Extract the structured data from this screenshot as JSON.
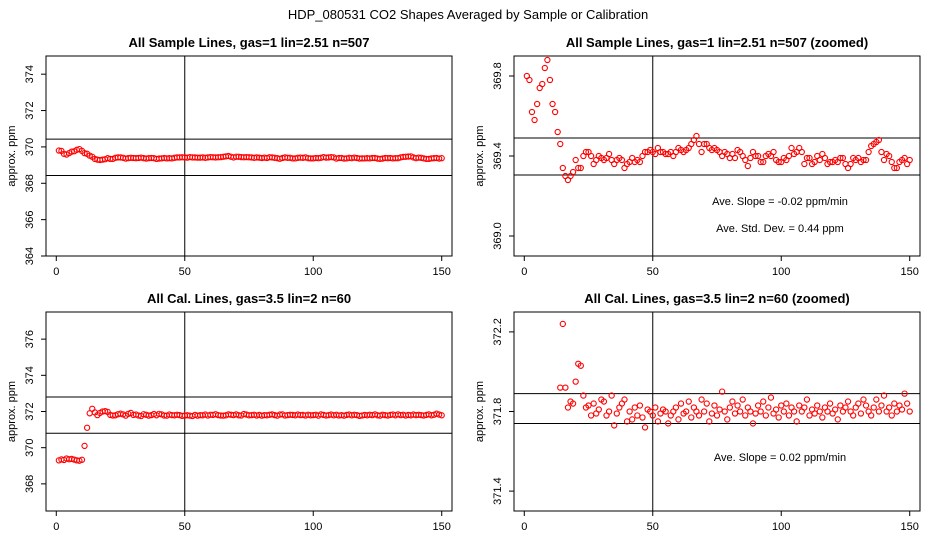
{
  "suptitle": "HDP_080531  CO2 Shapes Averaged by Sample or Calibration",
  "colors": {
    "points": "#ff0000",
    "axes": "#000000",
    "background": "#ffffff"
  },
  "chart_data": [
    {
      "id": "sample-full",
      "type": "scatter",
      "title": "All Sample Lines, gas=1 lin=2.51 n=507",
      "xlabel": "",
      "ylabel": "approx. ppm",
      "xlim": [
        -4,
        154
      ],
      "ylim": [
        364,
        375
      ],
      "xticks": [
        0,
        50,
        100,
        150
      ],
      "yticks": [
        364,
        366,
        368,
        370,
        372,
        374
      ],
      "hlines": [
        370.43,
        368.43
      ],
      "vline": 50,
      "annotations": [],
      "series": [
        {
          "name": "sample",
          "x_start": 1,
          "x_step": 1,
          "y": [
            369.8,
            369.78,
            369.62,
            369.58,
            369.66,
            369.74,
            369.76,
            369.84,
            369.88,
            369.78,
            369.66,
            369.62,
            369.52,
            369.46,
            369.34,
            369.3,
            369.28,
            369.3,
            369.32,
            369.38,
            369.34,
            369.34,
            369.4,
            369.42,
            369.42,
            369.4,
            369.36,
            369.38,
            369.4,
            369.39,
            369.38,
            369.39,
            369.41,
            369.38,
            369.36,
            369.38,
            369.39,
            369.38,
            369.34,
            369.36,
            369.37,
            369.39,
            369.37,
            369.38,
            369.37,
            369.4,
            369.42,
            369.42,
            369.43,
            369.42,
            369.41,
            369.44,
            369.42,
            369.42,
            369.41,
            369.41,
            369.42,
            369.4,
            369.42,
            369.44,
            369.43,
            369.42,
            369.43,
            369.44,
            369.46,
            369.48,
            369.5,
            369.46,
            369.42,
            369.46,
            369.46,
            369.44,
            369.43,
            369.44,
            369.43,
            369.42,
            369.4,
            369.42,
            369.41,
            369.39,
            369.41,
            369.39,
            369.43,
            369.42,
            369.4,
            369.38,
            369.35,
            369.39,
            369.42,
            369.4,
            369.4,
            369.37,
            369.37,
            369.4,
            369.41,
            369.4,
            369.42,
            369.38,
            369.37,
            369.37,
            369.39,
            369.38,
            369.4,
            369.44,
            369.41,
            369.42,
            369.44,
            369.42,
            369.36,
            369.39,
            369.39,
            369.36,
            369.37,
            369.4,
            369.38,
            369.41,
            369.39,
            369.36,
            369.37,
            369.37,
            369.38,
            369.37,
            369.39,
            369.39,
            369.36,
            369.34,
            369.36,
            369.39,
            369.38,
            369.39,
            369.37,
            369.38,
            369.38,
            369.42,
            369.45,
            369.46,
            369.47,
            369.48,
            369.42,
            369.38,
            369.41,
            369.4,
            369.37,
            369.34,
            369.34,
            369.37,
            369.38,
            369.39,
            369.36,
            369.38
          ]
        }
      ]
    },
    {
      "id": "sample-zoom",
      "type": "scatter",
      "title": "All Sample Lines, gas=1 lin=2.51 n=507 (zoomed)",
      "xlabel": "",
      "ylabel": "approx. ppm",
      "xlim": [
        -4,
        154
      ],
      "ylim": [
        368.9,
        369.9
      ],
      "xticks": [
        0,
        50,
        100,
        150
      ],
      "yticks": [
        369.0,
        369.4,
        369.8
      ],
      "ytick_labels": [
        "369.0",
        "369.4",
        "369.8"
      ],
      "hlines": [
        369.49,
        369.305
      ],
      "vline": 50,
      "annotations": [
        "Ave. Slope = -0.02  ppm/min",
        "Ave. Std. Dev. = 0.44  ppm"
      ],
      "series": [
        {
          "name": "sample",
          "x_start": 1,
          "x_step": 1,
          "y": [
            369.8,
            369.78,
            369.62,
            369.58,
            369.66,
            369.74,
            369.76,
            369.84,
            369.88,
            369.78,
            369.66,
            369.62,
            369.52,
            369.46,
            369.34,
            369.3,
            369.28,
            369.3,
            369.32,
            369.38,
            369.34,
            369.34,
            369.4,
            369.42,
            369.42,
            369.4,
            369.36,
            369.38,
            369.4,
            369.39,
            369.38,
            369.39,
            369.41,
            369.38,
            369.36,
            369.38,
            369.39,
            369.38,
            369.34,
            369.36,
            369.37,
            369.39,
            369.37,
            369.38,
            369.37,
            369.4,
            369.42,
            369.42,
            369.43,
            369.42,
            369.41,
            369.44,
            369.42,
            369.42,
            369.41,
            369.41,
            369.42,
            369.4,
            369.42,
            369.44,
            369.43,
            369.42,
            369.43,
            369.44,
            369.46,
            369.48,
            369.5,
            369.46,
            369.42,
            369.46,
            369.46,
            369.44,
            369.43,
            369.44,
            369.43,
            369.42,
            369.4,
            369.42,
            369.41,
            369.39,
            369.41,
            369.39,
            369.43,
            369.42,
            369.4,
            369.38,
            369.35,
            369.39,
            369.42,
            369.4,
            369.4,
            369.37,
            369.37,
            369.4,
            369.41,
            369.4,
            369.42,
            369.38,
            369.37,
            369.37,
            369.39,
            369.38,
            369.4,
            369.44,
            369.41,
            369.42,
            369.44,
            369.42,
            369.36,
            369.39,
            369.39,
            369.36,
            369.37,
            369.4,
            369.38,
            369.41,
            369.39,
            369.36,
            369.37,
            369.37,
            369.38,
            369.37,
            369.39,
            369.39,
            369.36,
            369.34,
            369.36,
            369.39,
            369.38,
            369.39,
            369.37,
            369.38,
            369.38,
            369.42,
            369.45,
            369.46,
            369.47,
            369.48,
            369.42,
            369.38,
            369.41,
            369.4,
            369.37,
            369.34,
            369.34,
            369.37,
            369.38,
            369.39,
            369.36,
            369.38
          ]
        }
      ]
    },
    {
      "id": "cal-full",
      "type": "scatter",
      "title": "All Cal. Lines, gas=3.5 lin=2 n=60",
      "xlabel": "",
      "ylabel": "approx. ppm",
      "xlim": [
        -4,
        154
      ],
      "ylim": [
        366.5,
        377.5
      ],
      "xticks": [
        0,
        50,
        100,
        150
      ],
      "yticks": [
        368,
        370,
        372,
        374,
        376
      ],
      "hlines": [
        372.8,
        370.8
      ],
      "vline": 50,
      "annotations": [],
      "series": [
        {
          "name": "cal",
          "x_start": 1,
          "x_step": 1,
          "y": [
            369.3,
            369.35,
            369.32,
            369.4,
            369.36,
            369.38,
            369.34,
            369.3,
            369.28,
            369.33,
            370.1,
            371.1,
            371.9,
            372.15,
            371.95,
            371.8,
            371.92,
            372.0,
            372.02,
            371.98,
            371.81,
            371.78,
            371.79,
            371.85,
            371.88,
            371.84,
            371.77,
            371.87,
            371.92,
            371.81,
            371.83,
            371.78,
            371.75,
            371.85,
            371.82,
            371.77,
            371.8,
            371.86,
            371.79,
            371.87,
            371.84,
            371.78,
            371.77,
            371.83,
            371.8,
            371.79,
            371.82,
            371.8,
            371.76,
            371.78,
            371.79,
            371.77,
            371.75,
            371.81,
            371.77,
            371.8,
            371.79,
            371.83,
            371.78,
            371.82,
            371.81,
            371.85,
            371.8,
            371.78,
            371.77,
            371.79,
            371.84,
            371.82,
            371.8,
            371.84,
            371.79,
            371.78,
            371.86,
            371.83,
            371.79,
            371.8,
            371.82,
            371.78,
            371.81,
            371.77,
            371.8,
            371.79,
            371.82,
            371.84,
            371.8,
            371.77,
            371.83,
            371.84,
            371.78,
            371.8,
            371.82,
            371.81,
            371.79,
            371.83,
            371.8,
            371.81,
            371.78,
            371.82,
            371.79,
            371.8,
            371.82,
            371.77,
            371.84,
            371.81,
            371.78,
            371.8,
            371.83,
            371.79,
            371.82,
            371.78,
            371.8,
            371.77,
            371.81,
            371.83,
            371.79,
            371.82,
            371.8,
            371.76,
            371.78,
            371.81,
            371.79,
            371.82,
            371.8,
            371.84,
            371.79,
            371.77,
            371.82,
            371.8,
            371.78,
            371.81,
            371.83,
            371.79,
            371.84,
            371.8,
            371.82,
            371.78,
            371.81,
            371.79,
            371.83,
            371.8,
            371.82,
            371.8,
            371.78,
            371.81,
            371.84,
            371.79,
            371.82,
            371.88,
            371.83,
            371.79
          ]
        }
      ]
    },
    {
      "id": "cal-zoom",
      "type": "scatter",
      "title": "All Cal. Lines, gas=3.5 lin=2 n=60 (zoomed)",
      "xlabel": "",
      "ylabel": "approx. ppm",
      "xlim": [
        -4,
        154
      ],
      "ylim": [
        371.3,
        372.3
      ],
      "xticks": [
        0,
        50,
        100,
        150
      ],
      "yticks": [
        371.4,
        371.8,
        372.2
      ],
      "ytick_labels": [
        "371.4",
        "371.8",
        "372.2"
      ],
      "hlines": [
        371.89,
        371.74
      ],
      "vline": 50,
      "annotations": [
        "Ave. Slope =  0.02  ppm/min"
      ],
      "series": [
        {
          "name": "cal",
          "x_start": 14,
          "x_step": 1,
          "y": [
            371.92,
            372.24,
            371.92,
            371.82,
            371.85,
            371.84,
            371.95,
            372.04,
            372.03,
            371.88,
            371.82,
            371.83,
            371.78,
            371.84,
            371.79,
            371.81,
            371.86,
            371.85,
            371.78,
            371.8,
            371.88,
            371.73,
            371.79,
            371.82,
            371.84,
            371.86,
            371.75,
            371.8,
            371.76,
            371.82,
            371.78,
            371.83,
            371.77,
            371.72,
            371.81,
            371.8,
            371.78,
            371.82,
            371.75,
            371.79,
            371.81,
            371.8,
            371.74,
            371.78,
            371.8,
            371.82,
            371.76,
            371.84,
            371.79,
            371.8,
            371.85,
            371.77,
            371.82,
            371.8,
            371.78,
            371.86,
            371.8,
            371.84,
            371.75,
            371.79,
            371.83,
            371.78,
            371.81,
            371.9,
            371.8,
            371.76,
            371.82,
            371.85,
            371.79,
            371.83,
            371.8,
            371.86,
            371.78,
            371.82,
            371.8,
            371.74,
            371.79,
            371.83,
            371.8,
            371.85,
            371.78,
            371.82,
            371.87,
            371.79,
            371.81,
            371.77,
            371.83,
            371.8,
            371.84,
            371.78,
            371.82,
            371.8,
            371.75,
            371.83,
            371.8,
            371.82,
            371.86,
            371.78,
            371.81,
            371.79,
            371.83,
            371.8,
            371.77,
            371.82,
            371.8,
            371.84,
            371.79,
            371.81,
            371.76,
            371.83,
            371.8,
            371.82,
            371.85,
            371.8,
            371.78,
            371.82,
            371.84,
            371.79,
            371.86,
            371.83,
            371.8,
            371.78,
            371.82,
            371.86,
            371.8,
            371.83,
            371.88,
            371.8,
            371.82,
            371.78,
            371.84,
            371.8,
            371.83,
            371.81,
            371.89,
            371.84,
            371.8
          ]
        }
      ]
    }
  ]
}
